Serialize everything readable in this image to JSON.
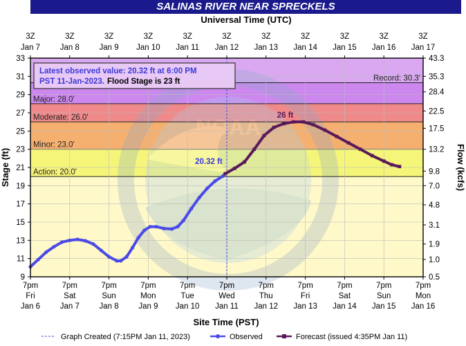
{
  "header": {
    "title": "SALINAS RIVER NEAR SPRECKELS",
    "top_axis_title": "Universal Time (UTC)",
    "bottom_axis_title": "Site Time (PST)",
    "left_axis_title": "Stage (ft)",
    "right_axis_title": "Flow (kcfs)"
  },
  "info_box": {
    "line1": "Latest observed value: 20.32 ft at 6:00 PM",
    "line2_date": "PST 11-Jan-2023.",
    "line2_flood": "Flood Stage is 23 ft"
  },
  "legend": {
    "created": "Graph Created (7:15PM Jan 11, 2023)",
    "observed": "Observed",
    "forecast": "Forecast (issued 4:35PM Jan 11)"
  },
  "colors": {
    "title_bg": "#1a1a8c",
    "record_band": "#d9a8f0",
    "major_band": "#cc88ee",
    "moderate_band": "#f08a8a",
    "minor_band": "#f5b070",
    "action_band": "#f5f57a",
    "observed_line": "#4a4ae8",
    "forecast_line": "#5a1a5a",
    "plot_bg": "#fff8c8"
  },
  "chart_data": {
    "type": "line",
    "x_unit": "days (PST)",
    "ylim": [
      9,
      33
    ],
    "y_ticks": [
      9,
      11,
      13,
      15,
      17,
      19,
      21,
      23,
      25,
      27,
      29,
      31,
      33
    ],
    "right_ticks": [
      {
        "stage": 33,
        "label": "43.3"
      },
      {
        "stage": 31,
        "label": "35.3"
      },
      {
        "stage": 29.3,
        "label": "28.4"
      },
      {
        "stage": 27.2,
        "label": "22.5"
      },
      {
        "stage": 25.3,
        "label": "17.5"
      },
      {
        "stage": 23,
        "label": "13.2"
      },
      {
        "stage": 20.6,
        "label": "9.8"
      },
      {
        "stage": 19,
        "label": "7.0"
      },
      {
        "stage": 16.9,
        "label": "4.8"
      },
      {
        "stage": 14.7,
        "label": "3.1"
      },
      {
        "stage": 12.6,
        "label": "1.9"
      },
      {
        "stage": 10.9,
        "label": "1.0"
      },
      {
        "stage": 9,
        "label": "0.5"
      }
    ],
    "bottom_ticks": [
      {
        "l1": "7pm",
        "l2": "Fri",
        "l3": "Jan 6"
      },
      {
        "l1": "7pm",
        "l2": "Sat",
        "l3": "Jan 7"
      },
      {
        "l1": "7pm",
        "l2": "Sun",
        "l3": "Jan 8"
      },
      {
        "l1": "7pm",
        "l2": "Mon",
        "l3": "Jan 9"
      },
      {
        "l1": "7pm",
        "l2": "Tue",
        "l3": "Jan 10"
      },
      {
        "l1": "7pm",
        "l2": "Wed",
        "l3": "Jan 11"
      },
      {
        "l1": "7pm",
        "l2": "Thu",
        "l3": "Jan 12"
      },
      {
        "l1": "7pm",
        "l2": "Fri",
        "l3": "Jan 13"
      },
      {
        "l1": "7pm",
        "l2": "Sat",
        "l3": "Jan 14"
      },
      {
        "l1": "7pm",
        "l2": "Sun",
        "l3": "Jan 15"
      },
      {
        "l1": "7pm",
        "l2": "Mon",
        "l3": "Jan 16"
      }
    ],
    "top_ticks": [
      {
        "l1": "3Z",
        "l2": "Jan 7"
      },
      {
        "l1": "3Z",
        "l2": "Jan 8"
      },
      {
        "l1": "3Z",
        "l2": "Jan 9"
      },
      {
        "l1": "3Z",
        "l2": "Jan 10"
      },
      {
        "l1": "3Z",
        "l2": "Jan 11"
      },
      {
        "l1": "3Z",
        "l2": "Jan 12"
      },
      {
        "l1": "3Z",
        "l2": "Jan 13"
      },
      {
        "l1": "3Z",
        "l2": "Jan 14"
      },
      {
        "l1": "3Z",
        "l2": "Jan 15"
      },
      {
        "l1": "3Z",
        "l2": "Jan 16"
      },
      {
        "l1": "3Z",
        "l2": "Jan 17"
      }
    ],
    "categories": [
      {
        "name": "Record",
        "stage": 30.3,
        "label": "Record: 30.3'",
        "color": "#d9a8f0"
      },
      {
        "name": "Major",
        "stage": 28,
        "label": "Major: 28.0'",
        "color": "#cc88ee"
      },
      {
        "name": "Moderate",
        "stage": 26,
        "label": "Moderate: 26.0'",
        "color": "#f08a8a"
      },
      {
        "name": "Minor",
        "stage": 23,
        "label": "Minor: 23.0'",
        "color": "#f5b070"
      },
      {
        "name": "Action",
        "stage": 20,
        "label": "Action: 20.0'",
        "color": "#f5f57a"
      }
    ],
    "created_day": 5.0,
    "observed_label": "20.32 ft",
    "forecast_peak_label": "26 ft",
    "series": [
      {
        "name": "Observed",
        "color": "#4a4ae8",
        "points": [
          [
            0.0,
            10.1
          ],
          [
            0.2,
            10.9
          ],
          [
            0.4,
            11.7
          ],
          [
            0.6,
            12.3
          ],
          [
            0.8,
            12.8
          ],
          [
            1.0,
            13.0
          ],
          [
            1.2,
            13.1
          ],
          [
            1.4,
            12.95
          ],
          [
            1.6,
            12.6
          ],
          [
            1.8,
            11.9
          ],
          [
            2.0,
            11.2
          ],
          [
            2.2,
            10.75
          ],
          [
            2.3,
            10.75
          ],
          [
            2.45,
            11.2
          ],
          [
            2.6,
            12.2
          ],
          [
            2.75,
            13.3
          ],
          [
            2.9,
            14.1
          ],
          [
            3.05,
            14.5
          ],
          [
            3.2,
            14.5
          ],
          [
            3.4,
            14.3
          ],
          [
            3.6,
            14.25
          ],
          [
            3.75,
            14.5
          ],
          [
            3.9,
            15.2
          ],
          [
            4.1,
            16.5
          ],
          [
            4.3,
            17.7
          ],
          [
            4.5,
            18.7
          ],
          [
            4.7,
            19.5
          ],
          [
            4.9,
            20.05
          ],
          [
            4.96,
            20.32
          ]
        ]
      },
      {
        "name": "Forecast",
        "color": "#5a1a5a",
        "points": [
          [
            4.96,
            20.32
          ],
          [
            5.2,
            20.9
          ],
          [
            5.45,
            21.6
          ],
          [
            5.7,
            23.0
          ],
          [
            5.95,
            24.5
          ],
          [
            6.2,
            25.4
          ],
          [
            6.45,
            25.8
          ],
          [
            6.7,
            26.0
          ],
          [
            6.95,
            26.0
          ],
          [
            7.2,
            25.7
          ],
          [
            7.5,
            25.1
          ],
          [
            7.8,
            24.4
          ],
          [
            8.1,
            23.7
          ],
          [
            8.4,
            23.0
          ],
          [
            8.7,
            22.3
          ],
          [
            9.0,
            21.7
          ],
          [
            9.2,
            21.3
          ],
          [
            9.4,
            21.1
          ]
        ]
      }
    ]
  }
}
